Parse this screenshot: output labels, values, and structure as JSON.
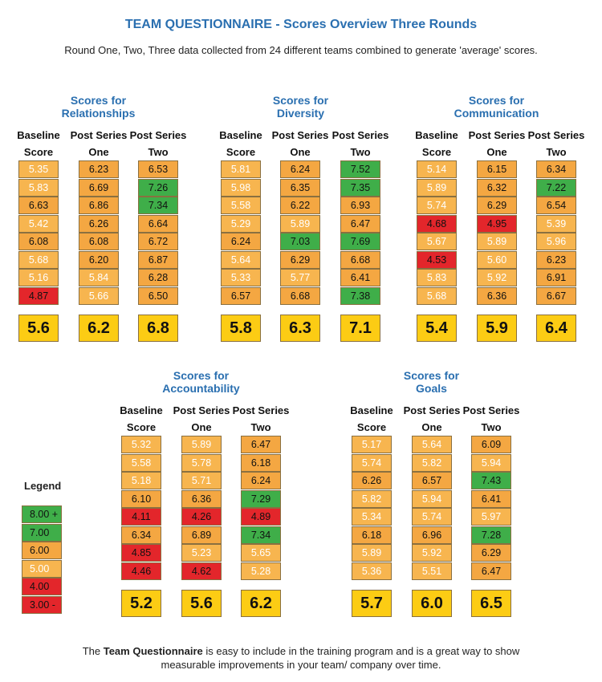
{
  "header": {
    "title": "TEAM QUESTIONNAIRE - Scores Overview Three Rounds",
    "subtitle": "Round One, Two, Three data collected from 24 different teams combined to generate  'average' scores."
  },
  "colors": {
    "green": "#3fae49",
    "red": "#e3262b",
    "orange": "#f4a742",
    "light_orange": "#f7b54f",
    "average_yellow": "#fccc14",
    "title_blue": "#2a6fb0"
  },
  "chart_data": {
    "type": "table",
    "columns": [
      {
        "line1": "Baseline",
        "line2": "Score"
      },
      {
        "line1": "Post Series",
        "line2": "One"
      },
      {
        "line1": "Post Series",
        "line2": "Two"
      }
    ],
    "groups": [
      {
        "title_line1": "Scores for",
        "title_line2": "Relationships",
        "series": [
          {
            "values": [
              "5.35",
              "5.83",
              "6.63",
              "5.42",
              "6.08",
              "5.68",
              "5.16",
              "4.87"
            ],
            "average": "5.6"
          },
          {
            "values": [
              "6.23",
              "6.69",
              "6.86",
              "6.26",
              "6.08",
              "6.20",
              "5.84",
              "5.66"
            ],
            "average": "6.2"
          },
          {
            "values": [
              "6.53",
              "7.26",
              "7.34",
              "6.64",
              "6.72",
              "6.87",
              "6.28",
              "6.50"
            ],
            "average": "6.8"
          }
        ]
      },
      {
        "title_line1": "Scores for",
        "title_line2": "Diversity",
        "series": [
          {
            "values": [
              "5.81",
              "5.98",
              "5.58",
              "5.29",
              "6.24",
              "5.64",
              "5.33",
              "6.57"
            ],
            "average": "5.8"
          },
          {
            "values": [
              "6.24",
              "6.35",
              "6.22",
              "5.89",
              "7.03",
              "6.29",
              "5.77",
              "6.68"
            ],
            "average": "6.3"
          },
          {
            "values": [
              "7.52",
              "7.35",
              "6.93",
              "6.47",
              "7.69",
              "6.68",
              "6.41",
              "7.38"
            ],
            "average": "7.1"
          }
        ]
      },
      {
        "title_line1": "Scores for",
        "title_line2": "Communication",
        "series": [
          {
            "values": [
              "5.14",
              "5.89",
              "5.74",
              "4.68",
              "5.67",
              "4.53",
              "5.83",
              "5.68"
            ],
            "average": "5.4"
          },
          {
            "values": [
              "6.15",
              "6.32",
              "6.29",
              "4.95",
              "5.89",
              "5.60",
              "5.92",
              "6.36"
            ],
            "average": "5.9"
          },
          {
            "values": [
              "6.34",
              "7.22",
              "6.54",
              "5.39",
              "5.96",
              "6.23",
              "6.91",
              "6.67"
            ],
            "average": "6.4"
          }
        ]
      },
      {
        "title_line1": "Scores for",
        "title_line2": "Accountability",
        "series": [
          {
            "values": [
              "5.32",
              "5.58",
              "5.18",
              "6.10",
              "4.11",
              "6.34",
              "4.85",
              "4.46"
            ],
            "average": "5.2"
          },
          {
            "values": [
              "5.89",
              "5.78",
              "5.71",
              "6.36",
              "4.26",
              "6.89",
              "5.23",
              "4.62"
            ],
            "average": "5.6"
          },
          {
            "values": [
              "6.47",
              "6.18",
              "6.24",
              "7.29",
              "4.89",
              "7.34",
              "5.65",
              "5.28"
            ],
            "average": "6.2"
          }
        ]
      },
      {
        "title_line1": "Scores for",
        "title_line2": "Goals",
        "series": [
          {
            "values": [
              "5.17",
              "5.74",
              "6.26",
              "5.82",
              "5.34",
              "6.18",
              "5.89",
              "5.36"
            ],
            "average": "5.7"
          },
          {
            "values": [
              "5.64",
              "5.82",
              "6.57",
              "5.94",
              "5.74",
              "6.96",
              "5.92",
              "5.51"
            ],
            "average": "6.0"
          },
          {
            "values": [
              "6.09",
              "5.94",
              "7.43",
              "6.41",
              "5.97",
              "7.28",
              "6.29",
              "6.47"
            ],
            "average": "6.5"
          }
        ]
      }
    ]
  },
  "legend": {
    "title": "Legend",
    "items": [
      {
        "label": "8.00 +",
        "color": "green"
      },
      {
        "label": "7.00",
        "color": "green"
      },
      {
        "label": "6.00",
        "color": "orange"
      },
      {
        "label": "5.00",
        "color": "light_orange"
      },
      {
        "label": "4.00",
        "color": "red"
      },
      {
        "label": "3.00 -",
        "color": "red"
      }
    ]
  },
  "footer": {
    "prefix": "The ",
    "bold": "Team Questionnaire",
    "line1_rest": " is easy to include in the training program and is a great way to show",
    "line2": "measurable improvements in your team/ company over time."
  }
}
